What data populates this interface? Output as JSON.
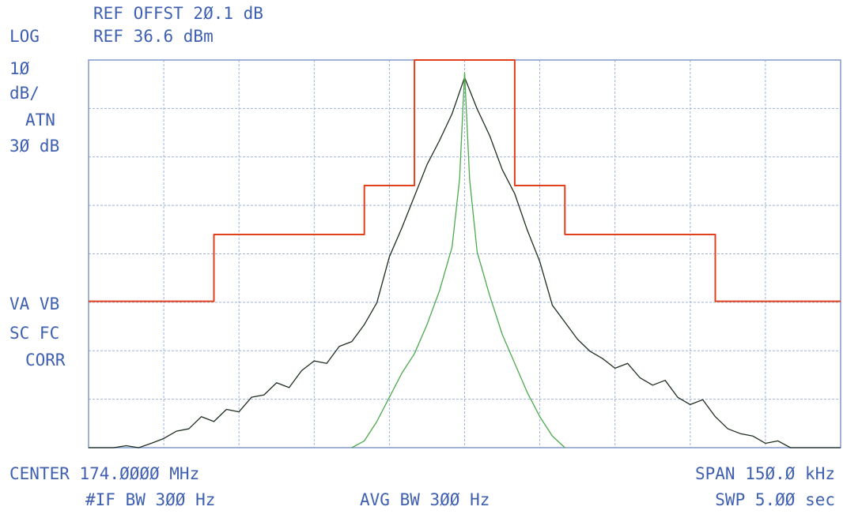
{
  "chart_data": {
    "type": "line",
    "annotations": [
      "REF OFFST 2Ø.1 dB",
      "LOG",
      "REF 36.6 dBm",
      "1Ø",
      "dB/",
      "ATN",
      "3Ø dB",
      "VA VB",
      "SC FC",
      "CORR",
      "CENTER 174.ØØØØ MHz",
      "#IF BW 3ØØ Hz",
      "AVG BW 3ØØ Hz",
      "SPAN 15Ø.Ø kHz",
      "SWP 5.ØØ sec"
    ],
    "xlim": [
      -75,
      75
    ],
    "ylim": [
      -43.4,
      36.6
    ],
    "xdivisions": 10,
    "ydivisions": 8,
    "grid": true,
    "series": [
      {
        "color": "#e0401c",
        "x": [
          -75,
          -50,
          -50,
          -20,
          -20,
          -10,
          -10,
          10,
          10,
          20,
          20,
          50,
          50,
          75
        ],
        "values": [
          -13.2,
          -13.2,
          0.6,
          0.6,
          10.7,
          10.7,
          36.6,
          36.6,
          10.7,
          10.7,
          0.6,
          0.6,
          -13.2,
          -13.2
        ]
      },
      {
        "color": "#1e2e1e",
        "x": [
          -75,
          -72.5,
          -70,
          -67.5,
          -65,
          -62.5,
          -60,
          -57.5,
          -55,
          -52.5,
          -50,
          -47.5,
          -45,
          -42.5,
          -40,
          -37.5,
          -35,
          -32.5,
          -30,
          -27.5,
          -25,
          -22.5,
          -20,
          -17.5,
          -15,
          -12.5,
          -10,
          -7.5,
          -5,
          -2.5,
          0,
          2.5,
          5,
          7.5,
          10,
          12.5,
          15,
          17.5,
          20,
          22.5,
          25,
          27.5,
          30,
          32.5,
          35,
          37.5,
          40,
          42.5,
          45,
          47.5,
          50,
          52.5,
          55,
          57.5,
          60,
          62.5,
          65,
          67.5,
          70,
          72.5,
          75
        ],
        "values": [
          -43.4,
          -43.4,
          -43.4,
          -43.0,
          -43.4,
          -42.5,
          -41.5,
          -40.0,
          -39.5,
          -37.0,
          -38.0,
          -35.5,
          -36.0,
          -33.0,
          -32.5,
          -30.0,
          -31.0,
          -27.5,
          -25.5,
          -26.0,
          -22.5,
          -21.5,
          -18.0,
          -13.5,
          -4.0,
          2.0,
          8.5,
          15.0,
          20.0,
          25.5,
          33.0,
          26.5,
          21.0,
          14.0,
          9.0,
          1.5,
          -5.0,
          -14.0,
          -17.5,
          -21.0,
          -23.5,
          -25.0,
          -27.0,
          -26.0,
          -29.0,
          -30.5,
          -29.5,
          -33.0,
          -34.5,
          -33.5,
          -37.0,
          -39.5,
          -40.5,
          -41.0,
          -42.5,
          -42.0,
          -43.4,
          -43.4,
          -43.4,
          -43.4,
          -43.4
        ]
      },
      {
        "color": "#4caa4c",
        "x": [
          -22.5,
          -20,
          -17.5,
          -15,
          -12.5,
          -10,
          -7.5,
          -5,
          -2.5,
          -1,
          0,
          1,
          2.5,
          5,
          7.5,
          10,
          12.5,
          15,
          17.5,
          20
        ],
        "values": [
          -43.4,
          -42,
          -38,
          -33,
          -28,
          -24,
          -18,
          -11,
          -2,
          12,
          34,
          12,
          -3,
          -12,
          -20,
          -26,
          -32,
          -37,
          -41,
          -43.4
        ]
      }
    ]
  }
}
